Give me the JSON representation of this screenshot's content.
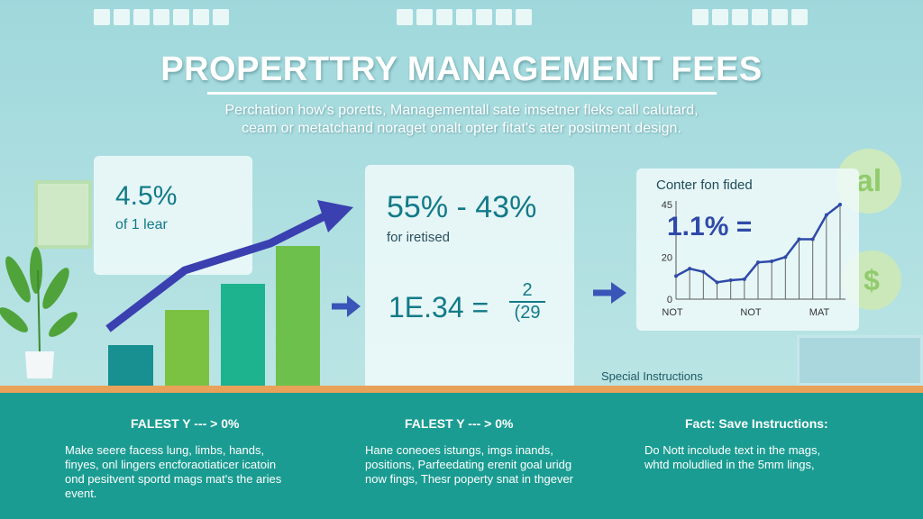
{
  "header": {
    "title": "PROPERTTRY MANAGEMENT FEES",
    "subtitle_lines": [
      "Perchation how's poretts, Managementall sate imsetner fleks call calutard,",
      "ceam or metatchand noraget onalt opter fitat's ater positment design."
    ]
  },
  "left_card": {
    "value": "4.5%",
    "label": "of 1 lear"
  },
  "middle_card": {
    "range": "55% - 43%",
    "label": "for iretised",
    "equation": "1E.34 =",
    "fraction_top": "2",
    "fraction_bottom": "(29"
  },
  "right_card": {
    "title": "Conter fon fided",
    "big_value": "1.1% ="
  },
  "special_instructions": "Special Instructions",
  "colors": {
    "accent_blue": "#3a40b0",
    "teal": "#1a9c92",
    "green": "#7cc242",
    "floor": "#e9a25a"
  },
  "chart_data": [
    {
      "type": "bar",
      "values": [
        1,
        2,
        2.7,
        3.3
      ],
      "ylabel": "",
      "xlabel": ""
    },
    {
      "type": "line",
      "title": "Conter fon fided",
      "yticks": [
        "0",
        "20",
        "45"
      ],
      "xticks": [
        "NOT",
        "NOT",
        "MAT"
      ],
      "ylim": [
        0,
        45
      ],
      "values": [
        11,
        14.5,
        13,
        8,
        9,
        9.5,
        17.5,
        18,
        20,
        28.5,
        28.5,
        40,
        45
      ]
    }
  ],
  "bottom": [
    {
      "heading": "FALEST Y --- > 0%",
      "lines": [
        "Make seere facess lung, limbs, hands,",
        "finyes, onl lingers encforaotiaticer icatoin",
        "ond pesitvent sportd mags mat's the aries",
        "event."
      ]
    },
    {
      "heading": "FALEST Y --- > 0%",
      "lines": [
        "Hane coneoes istungs, imgs inands,",
        "positions, Parfeedating erenit goal uridg",
        "now fings, Thesr poperty snat in thgever"
      ]
    },
    {
      "heading": "Fact: Save Instructions:",
      "lines": [
        "Do Nott incolude text in the mags,",
        "whtd moludlied in the 5mm lings,"
      ]
    }
  ]
}
